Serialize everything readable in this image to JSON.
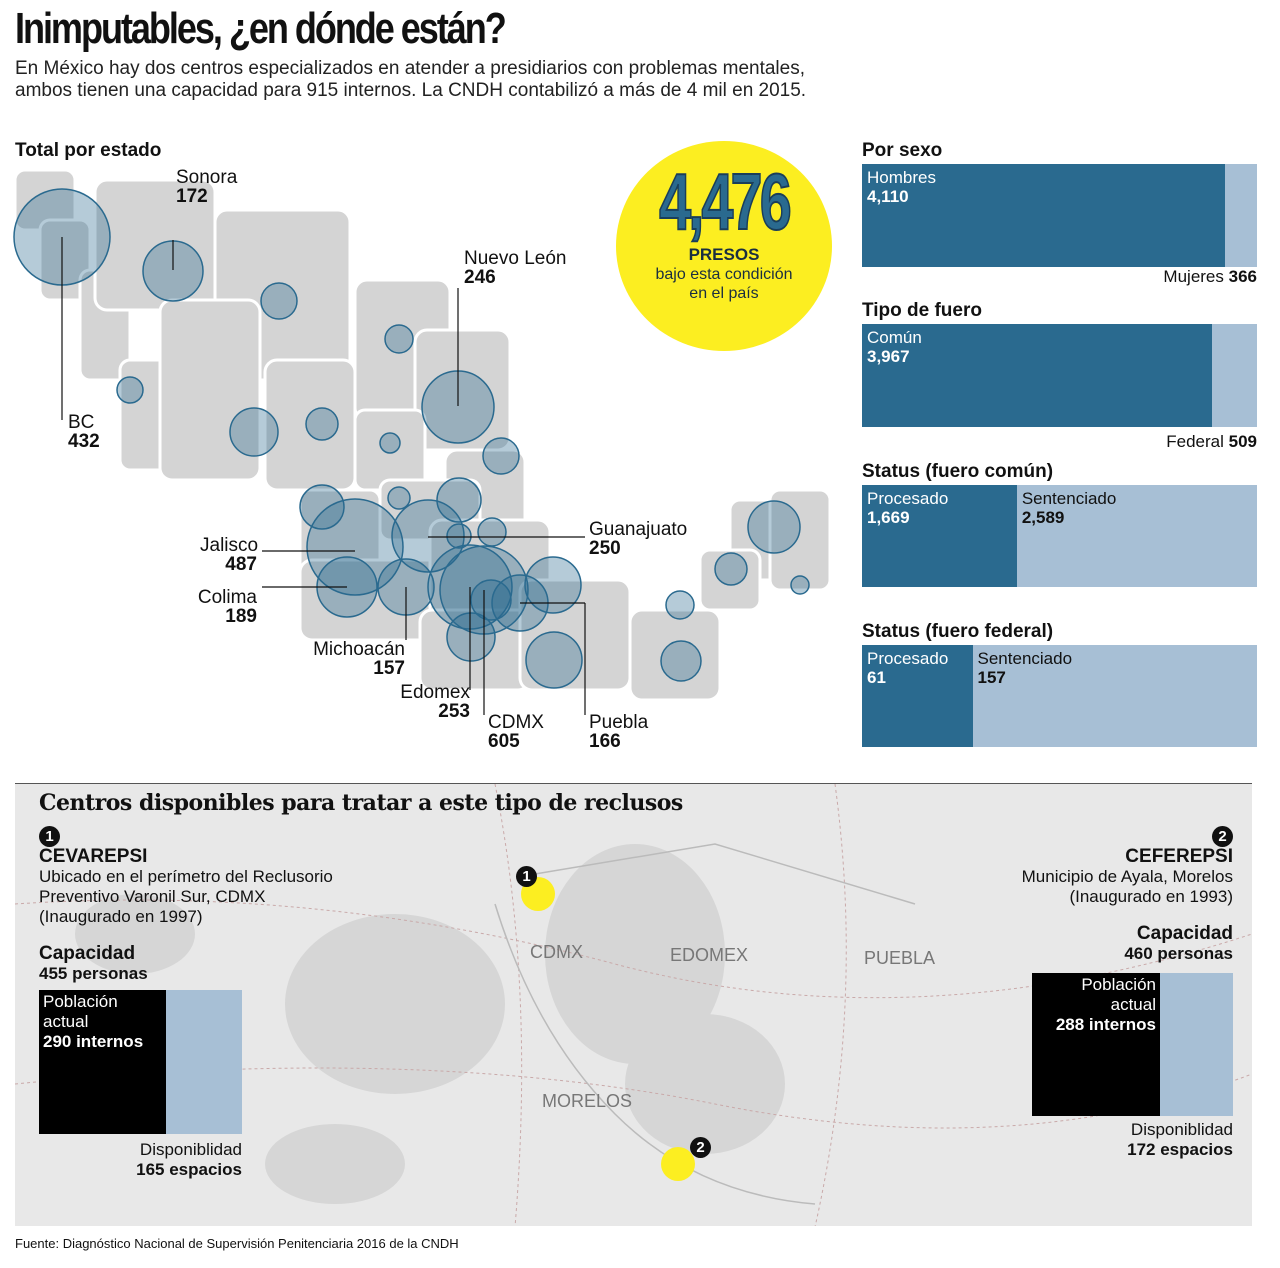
{
  "title": "Inimputables, ¿en dónde están?",
  "subtitle": "En México hay dos centros especializados en atender a presidiarios con problemas mentales, ambos tienen una capacidad para 915 internos. La CNDH contabilizó a más de 4 mil en 2015.",
  "map": {
    "title": "Total por estado",
    "states": [
      {
        "name": "Sonora",
        "value": "172"
      },
      {
        "name": "Nuevo León",
        "value": "246"
      },
      {
        "name": "BC",
        "value": "432"
      },
      {
        "name": "Guanajuato",
        "value": "250"
      },
      {
        "name": "Jalisco",
        "value": "487"
      },
      {
        "name": "Colima",
        "value": "189"
      },
      {
        "name": "Michoacán",
        "value": "157"
      },
      {
        "name": "Edomex",
        "value": "253"
      },
      {
        "name": "CDMX",
        "value": "605"
      },
      {
        "name": "Puebla",
        "value": "166"
      }
    ]
  },
  "total": {
    "value": "4,476",
    "label": "PRESOS",
    "text1": "bajo esta condición",
    "text2": "en el país"
  },
  "colors": {
    "dark": "#2a6a8f",
    "light": "#a7bfd5",
    "yellow": "#fcee21"
  },
  "chart_data": [
    {
      "type": "bar",
      "title": "Por sexo",
      "categories": [
        "Hombres",
        "Mujeres"
      ],
      "values": [
        4110,
        366
      ],
      "labels": [
        "4,110",
        "366"
      ]
    },
    {
      "type": "bar",
      "title": "Tipo de fuero",
      "categories": [
        "Común",
        "Federal"
      ],
      "values": [
        3967,
        509
      ],
      "labels": [
        "3,967",
        "509"
      ]
    },
    {
      "type": "bar",
      "title": "Status (fuero común)",
      "categories": [
        "Procesado",
        "Sentenciado"
      ],
      "values": [
        1669,
        2589
      ],
      "labels": [
        "1,669",
        "2,589"
      ]
    },
    {
      "type": "bar",
      "title": "Status (fuero federal)",
      "categories": [
        "Procesado",
        "Sentenciado"
      ],
      "values": [
        61,
        157
      ],
      "labels": [
        "61",
        "157"
      ]
    }
  ],
  "centers": {
    "title": "Centros disponibles para tratar a este tipo de reclusos",
    "c1": {
      "num": "1",
      "name": "CEVAREPSI",
      "l1": "Ubicado en el perímetro del Reclusorio",
      "l2": "Preventivo Varonil Sur, CDMX",
      "l3": "(Inaugurado en 1997)",
      "cap_label": "Capacidad",
      "cap": "455 personas",
      "pop1": "Población",
      "pop2": "actual",
      "pop": "290 internos",
      "disp_label": "Disponiblidad",
      "disp": "165 espacios",
      "pop_value": 290,
      "disp_value": 165
    },
    "c2": {
      "num": "2",
      "name": "CEFEREPSI",
      "l1": "Municipio de Ayala, Morelos",
      "l2": "(Inaugurado en 1993)",
      "cap_label": "Capacidad",
      "cap": "460 personas",
      "pop1": "Población",
      "pop2": "actual",
      "pop": "288 internos",
      "disp_label": "Disponiblidad",
      "disp": "172 espacios",
      "pop_value": 288,
      "disp_value": 172
    },
    "places": [
      "CDMX",
      "EDOMEX",
      "PUEBLA",
      "MORELOS"
    ]
  },
  "source": "Fuente: Diagnóstico Nacional de Supervisión Penitenciaria 2016 de la CNDH"
}
